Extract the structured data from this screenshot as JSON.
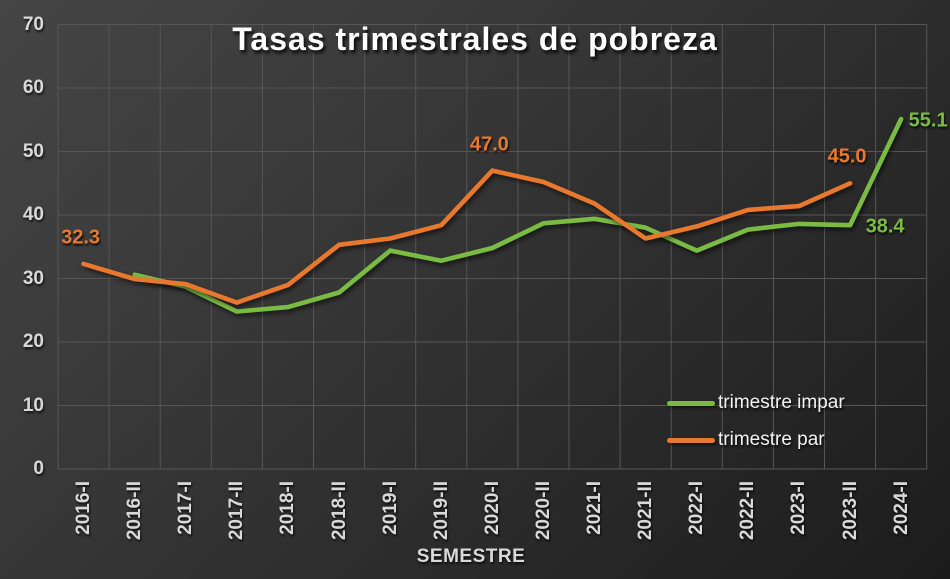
{
  "chart_data": {
    "type": "line",
    "title": "Tasas trimestrales de pobreza",
    "xlabel": "SEMESTRE",
    "ylabel": "",
    "ylim": [
      0,
      70
    ],
    "ytick_interval": 10,
    "yticks": [
      0,
      10,
      20,
      30,
      40,
      50,
      60,
      70
    ],
    "grid": true,
    "legend_position": "inside-bottom-right",
    "background": "dark-gray-gradient",
    "categories": [
      "2016-I",
      "2016-II",
      "2017-I",
      "2017-II",
      "2018-I",
      "2018-II",
      "2019-I",
      "2019-II",
      "2020-I",
      "2020-II",
      "2021-I",
      "2021-II",
      "2022-I",
      "2022-II",
      "2023-I",
      "2023-II",
      "2024-I"
    ],
    "series": [
      {
        "name": "trimestre impar",
        "color": "#7ABB43",
        "values": [
          null,
          30.6,
          28.7,
          24.8,
          25.5,
          27.8,
          34.4,
          32.8,
          34.8,
          38.7,
          39.4,
          38.0,
          34.4,
          37.7,
          38.6,
          38.4,
          55.1
        ]
      },
      {
        "name": "trimestre par",
        "color": "#E8782E",
        "values": [
          32.3,
          29.9,
          29.1,
          26.2,
          29.0,
          35.3,
          36.3,
          38.4,
          47.0,
          45.2,
          41.8,
          36.3,
          38.2,
          40.8,
          41.4,
          45.0,
          null
        ]
      }
    ],
    "point_labels": [
      {
        "series": "trimestre par",
        "category": "2016-I",
        "text": "32.3",
        "placement": "above"
      },
      {
        "series": "trimestre par",
        "category": "2020-I",
        "text": "47.0",
        "placement": "above"
      },
      {
        "series": "trimestre par",
        "category": "2023-II",
        "text": "45.0",
        "placement": "above"
      },
      {
        "series": "trimestre impar",
        "category": "2023-II",
        "text": "38.4",
        "placement": "right-far"
      },
      {
        "series": "trimestre impar",
        "category": "2024-I",
        "text": "55.1",
        "placement": "right"
      }
    ]
  },
  "colors": {
    "axis_text": "#D9D9D9",
    "gridline": "#565656",
    "title_text": "#FFFFFF",
    "legend_text": "#F2F2F2",
    "series_impar": "#7ABB43",
    "series_par": "#E8782E"
  }
}
